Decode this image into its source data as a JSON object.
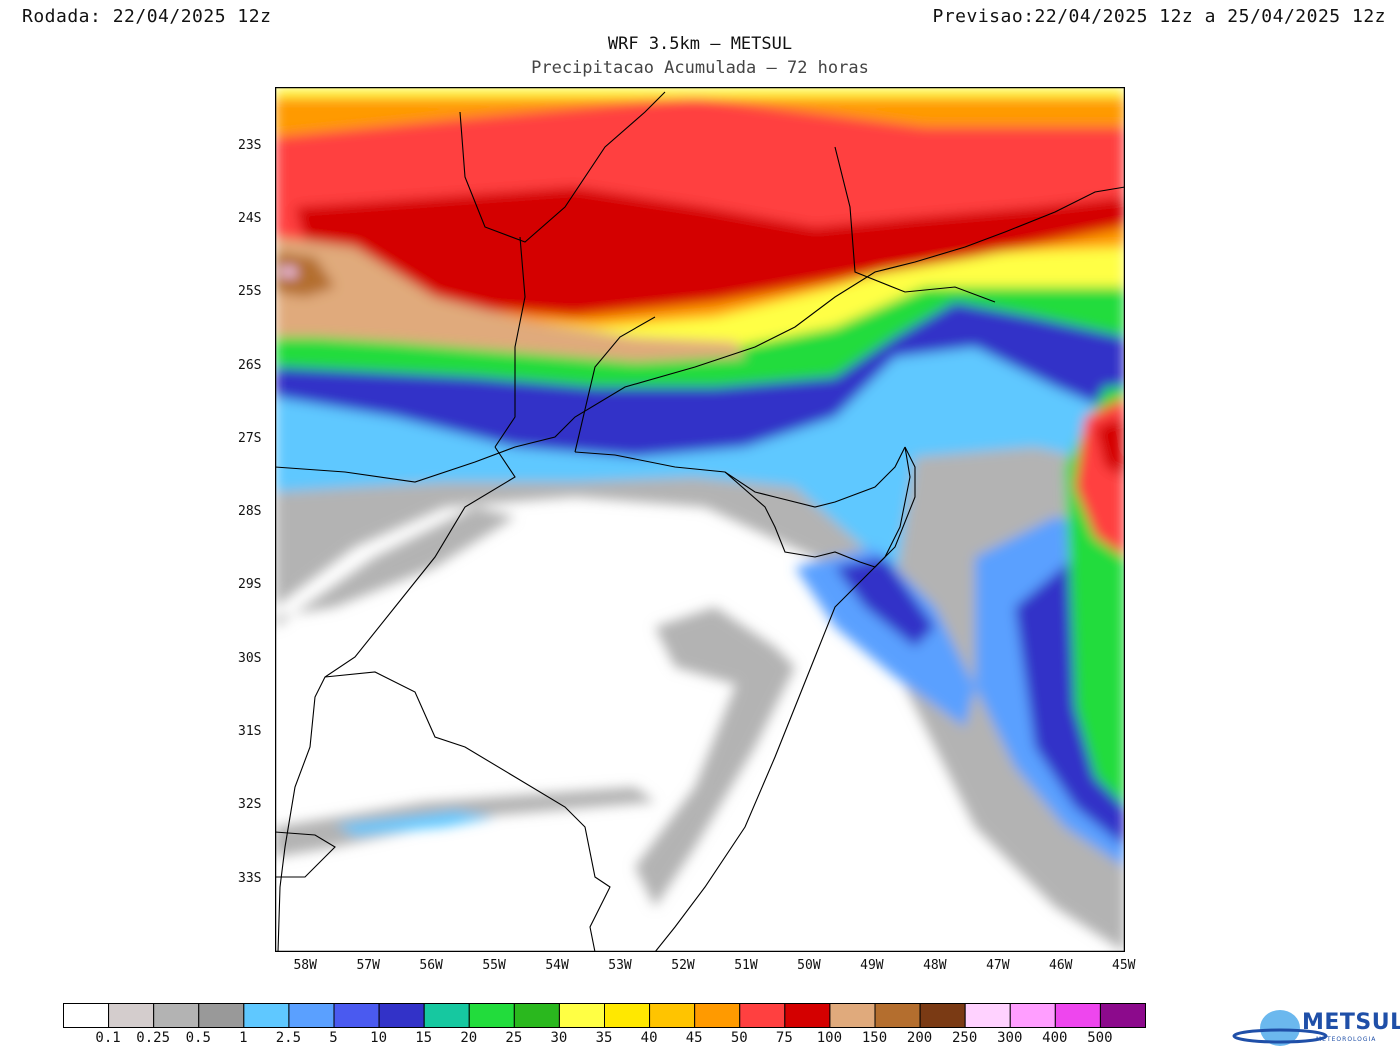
{
  "header": {
    "rodada_label": "Rodada:",
    "rodada_value": "22/04/2025 12z",
    "previsao_label": "Previsao:",
    "previsao_value": "22/04/2025 12z a 25/04/2025 12z"
  },
  "title": "WRF 3.5km – METSUL",
  "subtitle": "Precipitacao Acumulada – 72 horas",
  "map": {
    "lat_labels": [
      "23S",
      "24S",
      "25S",
      "26S",
      "27S",
      "28S",
      "29S",
      "30S",
      "31S",
      "32S",
      "33S"
    ],
    "lon_labels": [
      "58W",
      "57W",
      "56W",
      "55W",
      "54W",
      "53W",
      "52W",
      "51W",
      "50W",
      "49W",
      "48W",
      "47W",
      "46W",
      "45W"
    ],
    "lon_range": [
      -58.5,
      -45
    ],
    "lat_range": [
      -34.0,
      -22.2
    ]
  },
  "legend": {
    "colors": [
      "#ffffff",
      "#d4cdcd",
      "#b3b3b3",
      "#999999",
      "#5fc8ff",
      "#5aa0ff",
      "#4a5af0",
      "#3232c8",
      "#16c8a0",
      "#22dc3c",
      "#2ab81e",
      "#ffff44",
      "#ffe800",
      "#ffc400",
      "#ff9a00",
      "#ff4040",
      "#d40000",
      "#e0aa7c",
      "#b46e2e",
      "#7a3a14",
      "#ffd2ff",
      "#ff9eff",
      "#ee46ee",
      "#8c0a8c"
    ],
    "labels": [
      "0.1",
      "0.25",
      "0.5",
      "1",
      "2.5",
      "5",
      "10",
      "15",
      "20",
      "25",
      "30",
      "35",
      "40",
      "45",
      "50",
      "75",
      "100",
      "150",
      "200",
      "250",
      "300",
      "400",
      "500"
    ]
  },
  "logo": {
    "text": "METSUL",
    "subtext": "METEOROLOGIA"
  }
}
